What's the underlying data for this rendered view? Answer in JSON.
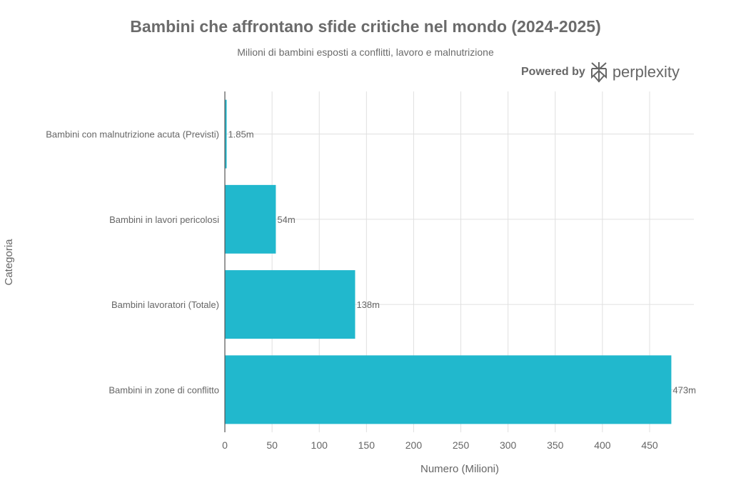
{
  "chart_data": {
    "type": "bar",
    "orientation": "horizontal",
    "title": "Bambini che affrontano sfide critiche nel mondo (2024-2025)",
    "subtitle": "Milioni di bambini esposti a conflitti, lavoro e malnutrizione",
    "xlabel": "Numero (Milioni)",
    "ylabel": "Categoria",
    "categories": [
      "Bambini con malnutrizione acuta (Previsti)",
      "Bambini in lavori pericolosi",
      "Bambini lavoratori (Totale)",
      "Bambini in zone di conflitto"
    ],
    "values": [
      1.85,
      54,
      138,
      473
    ],
    "data_labels": [
      "1.85m",
      "54m",
      "138m",
      "473m"
    ],
    "xlim": [
      0,
      490
    ],
    "xticks": [
      0,
      50,
      100,
      150,
      200,
      250,
      300,
      350,
      400,
      450
    ],
    "grid": true,
    "bar_color": "#21b8cd"
  },
  "branding": {
    "powered_by": "Powered by",
    "brand": "perplexity"
  }
}
